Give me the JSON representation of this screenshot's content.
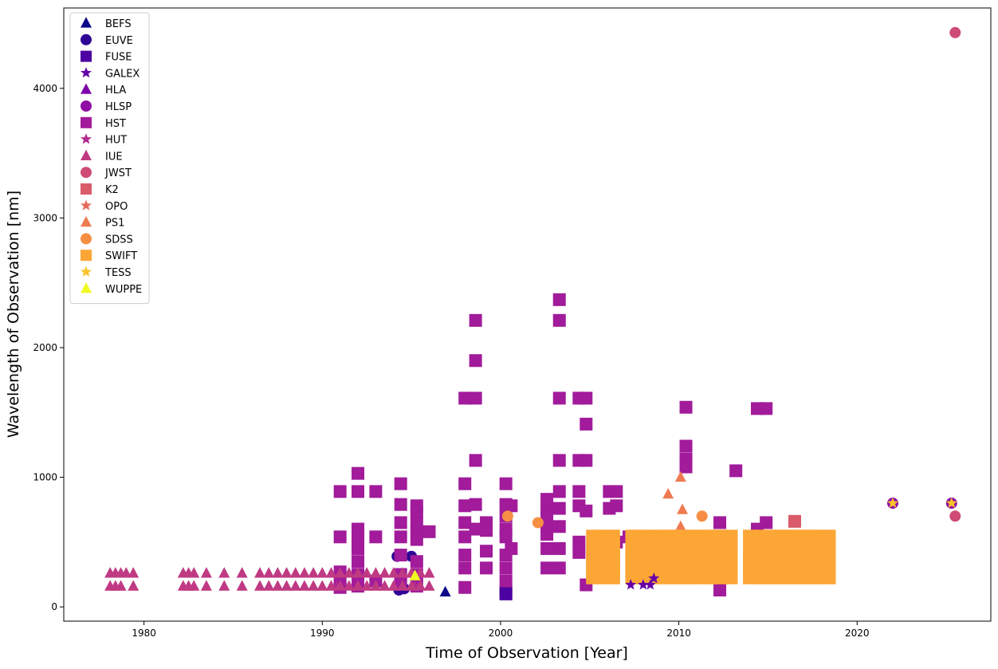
{
  "chart_data": {
    "type": "scatter",
    "title": "",
    "xlabel": "Time of Observation [Year]",
    "ylabel": "Wavelength of Observation [nm]",
    "xlim": [
      1975.5,
      2027.5
    ],
    "ylim": [
      -110,
      4620
    ],
    "xticks": [
      1980,
      1990,
      2000,
      2010,
      2020
    ],
    "yticks": [
      0,
      1000,
      2000,
      3000,
      4000
    ],
    "legend_position": "top-left",
    "series": [
      {
        "name": "BEFS",
        "color": "#0d0887",
        "marker": "triangle",
        "points": [
          [
            1996.9,
            115
          ]
        ]
      },
      {
        "name": "EUVE",
        "color": "#2f0596",
        "marker": "circle",
        "points": [
          [
            1994.2,
            390
          ],
          [
            1994.6,
            140
          ],
          [
            1995.0,
            390
          ],
          [
            1994.3,
            130
          ]
        ]
      },
      {
        "name": "FUSE",
        "color": "#4c02a1",
        "marker": "square",
        "points": [
          [
            2000.3,
            100
          ],
          [
            2000.3,
            115
          ]
        ]
      },
      {
        "name": "GALEX",
        "color": "#6600a7",
        "marker": "star",
        "points": [
          [
            2007.3,
            170
          ],
          [
            2008.0,
            170
          ],
          [
            2008.4,
            170
          ],
          [
            2008.6,
            220
          ],
          [
            2022.0,
            800
          ],
          [
            2025.3,
            800
          ]
        ]
      },
      {
        "name": "HLA",
        "color": "#7e03a8",
        "marker": "triangle",
        "points": []
      },
      {
        "name": "HLSP",
        "color": "#8f0da4",
        "marker": "circle",
        "points": [
          [
            2022.0,
            800
          ],
          [
            2025.3,
            800
          ]
        ]
      },
      {
        "name": "HST",
        "color": "#a11b9b",
        "marker": "square",
        "points": [
          [
            1991.0,
            890
          ],
          [
            1991.0,
            540
          ],
          [
            1991.0,
            270
          ],
          [
            1991.0,
            200
          ],
          [
            1991.0,
            150
          ],
          [
            1992.0,
            1030
          ],
          [
            1992.0,
            890
          ],
          [
            1992.0,
            600
          ],
          [
            1992.0,
            540
          ],
          [
            1992.0,
            450
          ],
          [
            1992.0,
            350
          ],
          [
            1992.0,
            250
          ],
          [
            1992.0,
            160
          ],
          [
            1993.0,
            890
          ],
          [
            1993.0,
            540
          ],
          [
            1993.0,
            200
          ],
          [
            1994.4,
            950
          ],
          [
            1994.4,
            790
          ],
          [
            1994.4,
            650
          ],
          [
            1994.4,
            540
          ],
          [
            1994.4,
            400
          ],
          [
            1994.4,
            250
          ],
          [
            1994.4,
            180
          ],
          [
            1995.3,
            780
          ],
          [
            1995.3,
            730
          ],
          [
            1995.3,
            650
          ],
          [
            1995.3,
            580
          ],
          [
            1995.3,
            520
          ],
          [
            1995.3,
            350
          ],
          [
            1995.3,
            250
          ],
          [
            1995.3,
            160
          ],
          [
            1996.0,
            580
          ],
          [
            1998.0,
            1610
          ],
          [
            1998.0,
            950
          ],
          [
            1998.0,
            780
          ],
          [
            1998.0,
            650
          ],
          [
            1998.0,
            540
          ],
          [
            1998.0,
            400
          ],
          [
            1998.0,
            300
          ],
          [
            1998.0,
            150
          ],
          [
            1998.6,
            2210
          ],
          [
            1998.6,
            1900
          ],
          [
            1998.6,
            1610
          ],
          [
            1998.6,
            1130
          ],
          [
            1998.6,
            790
          ],
          [
            1998.6,
            600
          ],
          [
            1999.2,
            650
          ],
          [
            1999.2,
            590
          ],
          [
            1999.2,
            430
          ],
          [
            1999.2,
            300
          ],
          [
            2000.3,
            950
          ],
          [
            2000.3,
            790
          ],
          [
            2000.3,
            700
          ],
          [
            2000.3,
            600
          ],
          [
            2000.3,
            540
          ],
          [
            2000.3,
            400
          ],
          [
            2000.3,
            300
          ],
          [
            2000.3,
            200
          ],
          [
            2000.6,
            780
          ],
          [
            2000.6,
            450
          ],
          [
            2002.6,
            830
          ],
          [
            2002.6,
            760
          ],
          [
            2002.6,
            690
          ],
          [
            2002.6,
            620
          ],
          [
            2002.6,
            560
          ],
          [
            2002.6,
            450
          ],
          [
            2002.6,
            300
          ],
          [
            2003.3,
            2370
          ],
          [
            2003.3,
            2210
          ],
          [
            2003.3,
            1610
          ],
          [
            2003.3,
            1130
          ],
          [
            2003.3,
            890
          ],
          [
            2003.3,
            760
          ],
          [
            2003.3,
            620
          ],
          [
            2003.3,
            450
          ],
          [
            2003.3,
            300
          ],
          [
            2004.4,
            1610
          ],
          [
            2004.4,
            1130
          ],
          [
            2004.4,
            890
          ],
          [
            2004.4,
            780
          ],
          [
            2004.4,
            500
          ],
          [
            2004.4,
            420
          ],
          [
            2004.8,
            1610
          ],
          [
            2004.8,
            1410
          ],
          [
            2004.8,
            1130
          ],
          [
            2004.8,
            740
          ],
          [
            2004.8,
            170
          ],
          [
            2006.1,
            890
          ],
          [
            2006.1,
            760
          ],
          [
            2006.5,
            890
          ],
          [
            2006.5,
            780
          ],
          [
            2006.5,
            500
          ],
          [
            2007.2,
            540
          ],
          [
            2010.4,
            1540
          ],
          [
            2010.4,
            1240
          ],
          [
            2010.4,
            1140
          ],
          [
            2010.4,
            1080
          ],
          [
            2010.4,
            500
          ],
          [
            2012.3,
            650
          ],
          [
            2012.3,
            130
          ],
          [
            2013.2,
            1050
          ],
          [
            2014.4,
            1530
          ],
          [
            2014.4,
            600
          ],
          [
            2014.9,
            1530
          ],
          [
            2014.9,
            650
          ],
          [
            2014.9,
            430
          ]
        ]
      },
      {
        "name": "HUT",
        "color": "#b12a90",
        "marker": "star",
        "points": [
          [
            1990.8,
            160
          ],
          [
            1995.2,
            160
          ]
        ]
      },
      {
        "name": "IUE",
        "color": "#c03a83",
        "marker": "triangle",
        "points": [
          [
            1978.1,
            260
          ],
          [
            1978.1,
            160
          ],
          [
            1978.4,
            260
          ],
          [
            1978.4,
            160
          ],
          [
            1978.7,
            260
          ],
          [
            1978.7,
            160
          ],
          [
            1979.0,
            260
          ],
          [
            1979.4,
            260
          ],
          [
            1979.4,
            160
          ],
          [
            1982.2,
            260
          ],
          [
            1982.2,
            160
          ],
          [
            1982.5,
            260
          ],
          [
            1982.5,
            160
          ],
          [
            1982.8,
            260
          ],
          [
            1982.8,
            160
          ],
          [
            1983.5,
            260
          ],
          [
            1983.5,
            160
          ],
          [
            1984.5,
            260
          ],
          [
            1984.5,
            160
          ],
          [
            1985.5,
            260
          ],
          [
            1985.5,
            160
          ],
          [
            1986.5,
            260
          ],
          [
            1986.5,
            160
          ],
          [
            1987.0,
            260
          ],
          [
            1987.0,
            160
          ],
          [
            1987.5,
            260
          ],
          [
            1987.5,
            160
          ],
          [
            1988.0,
            260
          ],
          [
            1988.0,
            160
          ],
          [
            1988.5,
            260
          ],
          [
            1988.5,
            160
          ],
          [
            1989.0,
            260
          ],
          [
            1989.0,
            160
          ],
          [
            1989.5,
            260
          ],
          [
            1989.5,
            160
          ],
          [
            1990.0,
            260
          ],
          [
            1990.0,
            160
          ],
          [
            1990.5,
            260
          ],
          [
            1990.5,
            160
          ],
          [
            1991.0,
            260
          ],
          [
            1991.0,
            160
          ],
          [
            1991.5,
            260
          ],
          [
            1991.5,
            160
          ],
          [
            1992.0,
            260
          ],
          [
            1992.0,
            160
          ],
          [
            1992.5,
            260
          ],
          [
            1992.5,
            160
          ],
          [
            1993.0,
            260
          ],
          [
            1993.0,
            160
          ],
          [
            1993.5,
            260
          ],
          [
            1993.5,
            160
          ],
          [
            1994.0,
            260
          ],
          [
            1994.0,
            160
          ],
          [
            1994.5,
            260
          ],
          [
            1994.5,
            160
          ],
          [
            1995.0,
            260
          ],
          [
            1995.0,
            160
          ],
          [
            1995.5,
            260
          ],
          [
            1995.5,
            160
          ],
          [
            1996.0,
            260
          ],
          [
            1996.0,
            160
          ]
        ]
      },
      {
        "name": "JWST",
        "color": "#ce4b75",
        "marker": "circle",
        "points": [
          [
            2025.5,
            4430
          ],
          [
            2025.5,
            700
          ]
        ]
      },
      {
        "name": "K2",
        "color": "#da5b69",
        "marker": "square",
        "points": [
          [
            2016.5,
            660
          ]
        ]
      },
      {
        "name": "OPO",
        "color": "#e56b5d",
        "marker": "star",
        "points": []
      },
      {
        "name": "PS1",
        "color": "#ee7b51",
        "marker": "triangle",
        "points": [
          [
            2009.4,
            870
          ],
          [
            2010.1,
            1000
          ],
          [
            2010.2,
            750
          ],
          [
            2010.1,
            620
          ],
          [
            2010.3,
            550
          ],
          [
            2010.5,
            480
          ]
        ]
      },
      {
        "name": "SDSS",
        "color": "#f68f44",
        "marker": "circle",
        "points": [
          [
            2000.4,
            700
          ],
          [
            2002.1,
            650
          ],
          [
            2011.3,
            700
          ]
        ]
      },
      {
        "name": "SWIFT",
        "color": "#fca636",
        "marker": "square",
        "points": []
      },
      {
        "name": "TESS",
        "color": "#fbc22a",
        "marker": "star",
        "points": [
          [
            2022.0,
            800
          ],
          [
            2025.3,
            800
          ]
        ]
      },
      {
        "name": "WUPPE",
        "color": "#f0f921",
        "marker": "triangle",
        "points": [
          [
            1995.2,
            240
          ]
        ]
      }
    ],
    "swift_block": {
      "x_range": [
        2005.2,
        2018.5
      ],
      "x_step": 0.55,
      "values": [
        540,
        440,
        380,
        330,
        270,
        230
      ],
      "gap_years": [
        2006.9,
        2013.4
      ]
    }
  }
}
